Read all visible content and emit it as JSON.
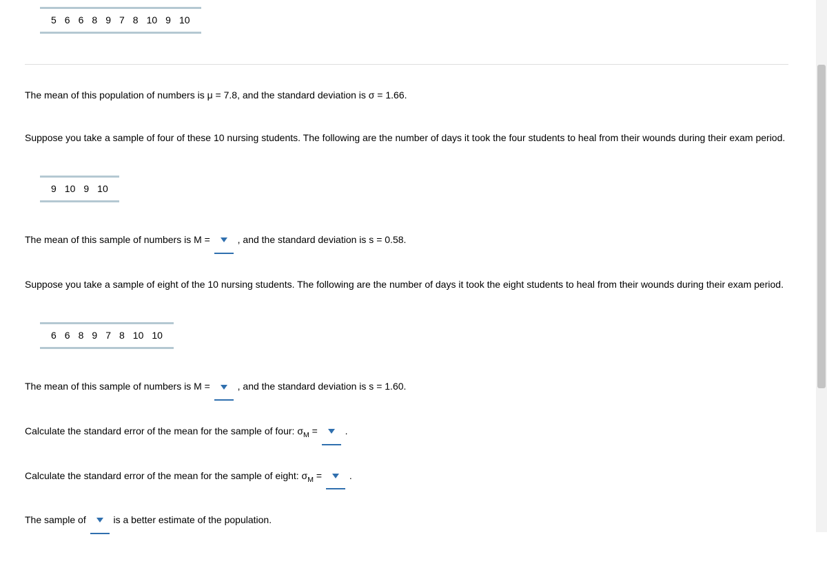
{
  "population_data": [
    "5",
    "6",
    "6",
    "8",
    "9",
    "7",
    "8",
    "10",
    "9",
    "10"
  ],
  "p1": {
    "pre": "The mean of this population of numbers is μ = ",
    "mu": "7.8",
    "mid": ", and the standard deviation is σ = ",
    "sigma": "1.66",
    "post": "."
  },
  "p2": "Suppose you take a sample of four of these 10 nursing students. The following are the number of days it took the four students to heal from their wounds during their exam period.",
  "sample4_data": [
    "9",
    "10",
    "9",
    "10"
  ],
  "p3": {
    "pre": "The mean of this sample of numbers is M =",
    "mid": ", and the standard deviation is s = ",
    "s": "0.58",
    "post": "."
  },
  "p4": "Suppose you take a sample of eight of the 10 nursing students. The following are the number of days it took the eight students to heal from their wounds during their exam period.",
  "sample8_data": [
    "6",
    "6",
    "8",
    "9",
    "7",
    "8",
    "10",
    "10"
  ],
  "p5": {
    "pre": "The mean of this sample of numbers is M =",
    "mid": ", and the standard deviation is s = ",
    "s": "1.60",
    "post": "."
  },
  "p6": {
    "pre": "Calculate the standard error of the mean for the sample of four: σ",
    "sub": "M",
    "eq": " =",
    "post": "."
  },
  "p7": {
    "pre": "Calculate the standard error of the mean for the sample of eight: σ",
    "sub": "M",
    "eq": " =",
    "post": "."
  },
  "p8": {
    "pre": "The sample of",
    "post": "is a better estimate of the population."
  }
}
